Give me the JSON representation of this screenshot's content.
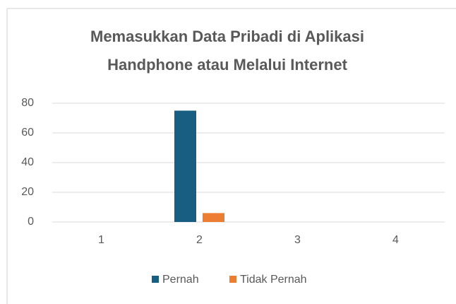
{
  "chart_data": {
    "type": "bar",
    "title": "Memasukkan Data Pribadi di Aplikasi Handphone atau Melalui Internet",
    "categories": [
      "1",
      "2",
      "3",
      "4"
    ],
    "series": [
      {
        "name": "Pernah",
        "color": "#175e82",
        "values": [
          0,
          75,
          0,
          0
        ]
      },
      {
        "name": "Tidak Pernah",
        "color": "#ed7d31",
        "values": [
          0,
          6,
          0,
          0
        ]
      }
    ],
    "ylim": [
      0,
      80
    ],
    "yticks": [
      0,
      20,
      40,
      60,
      80
    ],
    "grid": true,
    "legend": "bottom"
  }
}
